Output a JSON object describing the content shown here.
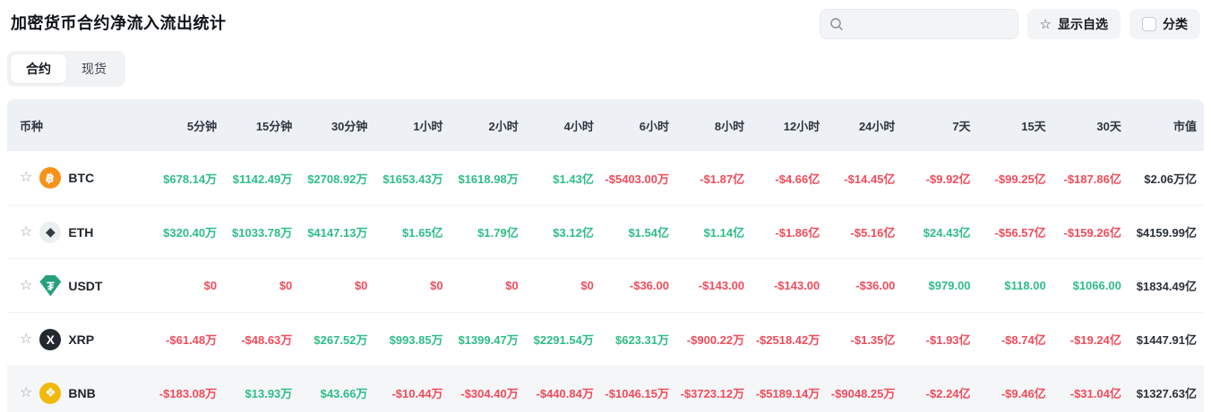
{
  "page": {
    "title": "加密货币合约净流入流出统计"
  },
  "toolbar": {
    "search_placeholder": "",
    "search_icon": "magnifier",
    "show_favorites_label": "显示自选",
    "favorite_star_icon": "☆",
    "category_label": "分类",
    "category_checkbox_checked": false
  },
  "tabs": [
    {
      "label": "合约",
      "active": true
    },
    {
      "label": "现货",
      "active": false
    }
  ],
  "colors": {
    "positive": "#2ebd85",
    "negative": "#f04b5a",
    "header_bg": "#edf0f4",
    "highlight_row_bg": "#f5f6f8"
  },
  "table": {
    "columns": [
      "币种",
      "5分钟",
      "15分钟",
      "30分钟",
      "1小时",
      "2小时",
      "4小时",
      "6小时",
      "8小时",
      "12小时",
      "24小时",
      "7天",
      "15天",
      "30天",
      "市值"
    ],
    "rows": [
      {
        "symbol": "BTC",
        "icon": {
          "name": "btc-icon",
          "glyph": "฿",
          "bg": "#f7931a",
          "fg": "#ffffff",
          "shape": "circle",
          "rotate": 12
        },
        "values": [
          "$678.14万",
          "$1142.49万",
          "$2708.92万",
          "$1653.43万",
          "$1618.98万",
          "$1.43亿",
          "-$5403.00万",
          "-$1.87亿",
          "-$4.66亿",
          "-$14.45亿",
          "-$9.92亿",
          "-$99.25亿",
          "-$187.86亿"
        ],
        "trends": [
          "pos",
          "pos",
          "pos",
          "pos",
          "pos",
          "pos",
          "neg",
          "neg",
          "neg",
          "neg",
          "neg",
          "neg",
          "neg"
        ],
        "market_cap": "$2.06万亿",
        "highlight": false
      },
      {
        "symbol": "ETH",
        "icon": {
          "name": "eth-icon",
          "glyph": "◆",
          "bg": "#eceff0",
          "fg": "#343b43",
          "shape": "circle",
          "rotate": 0
        },
        "values": [
          "$320.40万",
          "$1033.78万",
          "$4147.13万",
          "$1.65亿",
          "$1.79亿",
          "$3.12亿",
          "$1.54亿",
          "$1.14亿",
          "-$1.86亿",
          "-$5.16亿",
          "$24.43亿",
          "-$56.57亿",
          "-$159.26亿"
        ],
        "trends": [
          "pos",
          "pos",
          "pos",
          "pos",
          "pos",
          "pos",
          "pos",
          "pos",
          "neg",
          "neg",
          "pos",
          "neg",
          "neg"
        ],
        "market_cap": "$4159.99亿",
        "highlight": false
      },
      {
        "symbol": "USDT",
        "icon": {
          "name": "usdt-icon",
          "glyph": "₮",
          "bg": "#26a17b",
          "fg": "#ffffff",
          "shape": "shield",
          "rotate": 0
        },
        "values": [
          "$0",
          "$0",
          "$0",
          "$0",
          "$0",
          "$0",
          "-$36.00",
          "-$143.00",
          "-$143.00",
          "-$36.00",
          "$979.00",
          "$118.00",
          "$1066.00"
        ],
        "trends": [
          "neg",
          "neg",
          "neg",
          "neg",
          "neg",
          "neg",
          "neg",
          "neg",
          "neg",
          "neg",
          "pos",
          "pos",
          "pos"
        ],
        "market_cap": "$1834.49亿",
        "highlight": false
      },
      {
        "symbol": "XRP",
        "icon": {
          "name": "xrp-icon",
          "glyph": "X",
          "bg": "#23292f",
          "fg": "#ffffff",
          "shape": "circle",
          "rotate": 0
        },
        "values": [
          "-$61.48万",
          "-$48.63万",
          "$267.52万",
          "$993.85万",
          "$1399.47万",
          "$2291.54万",
          "$623.31万",
          "-$900.22万",
          "-$2518.42万",
          "-$1.35亿",
          "-$1.93亿",
          "-$8.74亿",
          "-$19.24亿"
        ],
        "trends": [
          "neg",
          "neg",
          "pos",
          "pos",
          "pos",
          "pos",
          "pos",
          "neg",
          "neg",
          "neg",
          "neg",
          "neg",
          "neg"
        ],
        "market_cap": "$1447.91亿",
        "highlight": false
      },
      {
        "symbol": "BNB",
        "icon": {
          "name": "bnb-icon",
          "glyph": "❖",
          "bg": "#f0b90b",
          "fg": "#ffffff",
          "shape": "circle",
          "rotate": 0
        },
        "values": [
          "-$183.08万",
          "$13.93万",
          "$43.66万",
          "-$10.44万",
          "-$304.40万",
          "-$440.84万",
          "-$1046.15万",
          "-$3723.12万",
          "-$5189.14万",
          "-$9048.25万",
          "-$2.24亿",
          "-$9.46亿",
          "-$31.04亿"
        ],
        "trends": [
          "neg",
          "pos",
          "pos",
          "neg",
          "neg",
          "neg",
          "neg",
          "neg",
          "neg",
          "neg",
          "neg",
          "neg",
          "neg"
        ],
        "market_cap": "$1327.63亿",
        "highlight": true
      }
    ]
  }
}
